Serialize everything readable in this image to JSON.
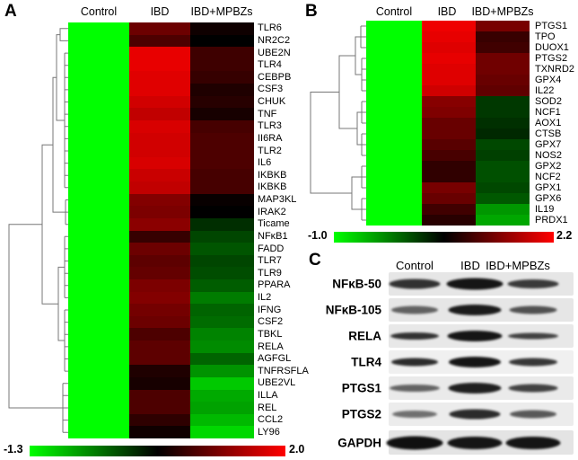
{
  "panel_labels": {
    "a": "A",
    "b": "B",
    "c": "C"
  },
  "chart_data": [
    {
      "type": "heatmap",
      "panel": "A",
      "columns": [
        "Control",
        "IBD",
        "IBD+MPBZs"
      ],
      "colormap": "green-black-red",
      "scale_min": -1.3,
      "scale_max": 2.0,
      "legend": {
        "min_label": "-1.3",
        "max_label": "2.0"
      },
      "rows": [
        "TLR6",
        "NR2C2",
        "UBE2N",
        "TLR4",
        "CEBPB",
        "CSF3",
        "CHUK",
        "TNF",
        "TLR3",
        "II6RA",
        "TLR2",
        "IL6",
        "IKBKB",
        "IKBKB",
        "MAP3KL",
        "IRAK2",
        "Ticame",
        "NFκB1",
        "FADD",
        "TLR7",
        "TLR9",
        "PPARA",
        "IL2",
        "IFNG",
        "CSF2",
        "TBKL",
        "RELA",
        "AGFGL",
        "TNFRSFLA",
        "UBE2VL",
        "ILLA",
        "REL",
        "CCL2",
        "LY96"
      ],
      "values": [
        [
          -1.3,
          1.05,
          0.45
        ],
        [
          -1.3,
          0.85,
          0.35
        ],
        [
          -1.3,
          1.85,
          0.75
        ],
        [
          -1.3,
          1.85,
          0.75
        ],
        [
          -1.3,
          1.8,
          0.7
        ],
        [
          -1.3,
          1.8,
          0.55
        ],
        [
          -1.3,
          1.7,
          0.6
        ],
        [
          -1.3,
          1.6,
          0.5
        ],
        [
          -1.3,
          1.75,
          0.8
        ],
        [
          -1.3,
          1.7,
          0.85
        ],
        [
          -1.3,
          1.7,
          0.85
        ],
        [
          -1.3,
          1.75,
          0.85
        ],
        [
          -1.3,
          1.65,
          0.8
        ],
        [
          -1.3,
          1.6,
          0.8
        ],
        [
          -1.3,
          1.2,
          0.4
        ],
        [
          -1.3,
          1.15,
          0.35
        ],
        [
          -1.3,
          1.25,
          0.05
        ],
        [
          -1.3,
          0.7,
          -0.1
        ],
        [
          -1.3,
          1.05,
          -0.2
        ],
        [
          -1.3,
          0.95,
          -0.1
        ],
        [
          -1.3,
          1.0,
          -0.15
        ],
        [
          -1.3,
          1.15,
          -0.25
        ],
        [
          -1.3,
          1.2,
          -0.45
        ],
        [
          -1.3,
          1.1,
          -0.3
        ],
        [
          -1.3,
          1.05,
          -0.35
        ],
        [
          -1.3,
          0.85,
          -0.5
        ],
        [
          -1.3,
          0.95,
          -0.55
        ],
        [
          -1.3,
          0.95,
          -0.3
        ],
        [
          -1.3,
          0.55,
          -0.6
        ],
        [
          -1.3,
          0.5,
          -0.95
        ],
        [
          -1.3,
          0.85,
          -0.75
        ],
        [
          -1.3,
          0.85,
          -0.7
        ],
        [
          -1.3,
          0.65,
          -0.85
        ],
        [
          -1.3,
          0.45,
          -1.05
        ]
      ]
    },
    {
      "type": "heatmap",
      "panel": "B",
      "columns": [
        "Control",
        "IBD",
        "IBD+MPBZs"
      ],
      "colormap": "green-black-red",
      "scale_min": -1.0,
      "scale_max": 2.2,
      "legend": {
        "min_label": "-1.0",
        "max_label": "2.2"
      },
      "rows": [
        "PTGS1",
        "TPO",
        "DUOX1",
        "PTGS2",
        "TXNRD2",
        "GPX4",
        "IL22",
        "SOD2",
        "NCF1",
        "AOX1",
        "CTSB",
        "GPX7",
        "NOS2",
        "GPX2",
        "NCF2",
        "GPX1",
        "GPX6",
        "IL19",
        "PRDX1"
      ],
      "values": [
        [
          -1.0,
          2.1,
          1.35
        ],
        [
          -1.0,
          2.05,
          0.95
        ],
        [
          -1.0,
          2.0,
          1.0
        ],
        [
          -1.0,
          2.05,
          1.3
        ],
        [
          -1.0,
          2.0,
          1.3
        ],
        [
          -1.0,
          2.0,
          1.25
        ],
        [
          -1.0,
          1.9,
          1.2
        ],
        [
          -1.0,
          1.45,
          0.25
        ],
        [
          -1.0,
          1.4,
          0.25
        ],
        [
          -1.0,
          1.25,
          0.3
        ],
        [
          -1.0,
          1.25,
          0.35
        ],
        [
          -1.0,
          1.15,
          0.15
        ],
        [
          -1.0,
          1.05,
          0.2
        ],
        [
          -1.0,
          0.9,
          0.1
        ],
        [
          -1.0,
          0.9,
          0.1
        ],
        [
          -1.0,
          1.35,
          0.15
        ],
        [
          -1.0,
          1.25,
          0.05
        ],
        [
          -1.0,
          1.0,
          -0.35
        ],
        [
          -1.0,
          0.85,
          -0.45
        ]
      ]
    },
    {
      "type": "table",
      "panel": "C",
      "subtype": "western-blot",
      "lanes": [
        "Control",
        "IBD",
        "IBD+MPBZs"
      ],
      "proteins": [
        "NFκB-50",
        "NFκB-105",
        "RELA",
        "TLR4",
        "PTGS1",
        "PTGS2",
        "GAPDH"
      ],
      "bands_format": "[width_px, height_px, darkness_0_to_1] per lane",
      "bands": [
        [
          [
            57,
            11,
            0.82
          ],
          [
            63,
            13,
            0.95
          ],
          [
            57,
            10,
            0.78
          ]
        ],
        [
          [
            52,
            9,
            0.6
          ],
          [
            59,
            12,
            0.92
          ],
          [
            53,
            9,
            0.68
          ]
        ],
        [
          [
            54,
            8,
            0.82
          ],
          [
            61,
            12,
            0.95
          ],
          [
            56,
            7,
            0.75
          ]
        ],
        [
          [
            52,
            9,
            0.85
          ],
          [
            58,
            12,
            0.95
          ],
          [
            54,
            9,
            0.8
          ]
        ],
        [
          [
            56,
            8,
            0.6
          ],
          [
            59,
            12,
            0.9
          ],
          [
            55,
            9,
            0.75
          ]
        ],
        [
          [
            50,
            8,
            0.55
          ],
          [
            57,
            11,
            0.85
          ],
          [
            52,
            9,
            0.65
          ]
        ],
        [
          [
            63,
            15,
            0.97
          ],
          [
            61,
            14,
            0.95
          ],
          [
            61,
            14,
            0.95
          ]
        ]
      ]
    }
  ]
}
